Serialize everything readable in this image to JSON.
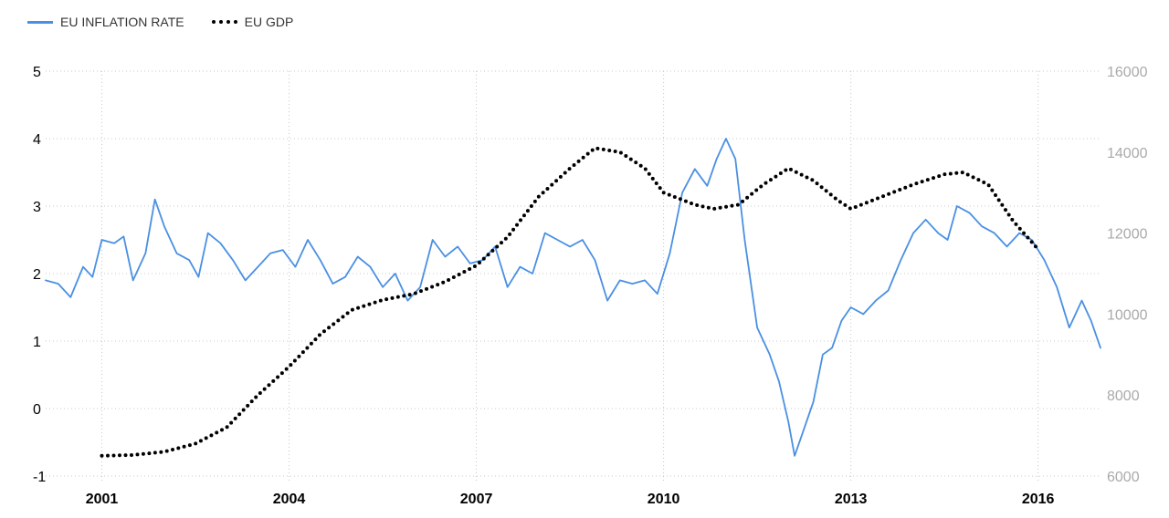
{
  "legend": [
    {
      "label": "EU INFLATION RATE",
      "color": "#4a90e2",
      "style": "solid"
    },
    {
      "label": "EU GDP",
      "color": "#000000",
      "style": "dotted"
    }
  ],
  "chart_data": {
    "type": "line",
    "title": "",
    "xlabel": "",
    "ylabel": "",
    "x_ticks": [
      "2001",
      "2004",
      "2007",
      "2010",
      "2013",
      "2016"
    ],
    "y_left_ticks": [
      "5",
      "4",
      "3",
      "2",
      "1",
      "0",
      "-1"
    ],
    "y_right_ticks": [
      "16000",
      "14000",
      "12000",
      "10000",
      "8000",
      "6000"
    ],
    "xlim": [
      2000.1,
      2017.0
    ],
    "ylim_left": [
      -1,
      5
    ],
    "ylim_right": [
      6000,
      16000
    ],
    "grid": true,
    "legend_position": "top-left",
    "series": [
      {
        "name": "EU INFLATION RATE",
        "axis": "left",
        "color": "#4a90e2",
        "style": "solid",
        "points": [
          [
            2000.1,
            1.9
          ],
          [
            2000.3,
            1.85
          ],
          [
            2000.5,
            1.65
          ],
          [
            2000.7,
            2.1
          ],
          [
            2000.85,
            1.95
          ],
          [
            2001.0,
            2.5
          ],
          [
            2001.2,
            2.45
          ],
          [
            2001.35,
            2.55
          ],
          [
            2001.5,
            1.9
          ],
          [
            2001.7,
            2.3
          ],
          [
            2001.85,
            3.1
          ],
          [
            2002.0,
            2.7
          ],
          [
            2002.2,
            2.3
          ],
          [
            2002.4,
            2.2
          ],
          [
            2002.55,
            1.95
          ],
          [
            2002.7,
            2.6
          ],
          [
            2002.9,
            2.45
          ],
          [
            2003.1,
            2.2
          ],
          [
            2003.3,
            1.9
          ],
          [
            2003.5,
            2.1
          ],
          [
            2003.7,
            2.3
          ],
          [
            2003.9,
            2.35
          ],
          [
            2004.1,
            2.1
          ],
          [
            2004.3,
            2.5
          ],
          [
            2004.5,
            2.2
          ],
          [
            2004.7,
            1.85
          ],
          [
            2004.9,
            1.95
          ],
          [
            2005.1,
            2.25
          ],
          [
            2005.3,
            2.1
          ],
          [
            2005.5,
            1.8
          ],
          [
            2005.7,
            2.0
          ],
          [
            2005.9,
            1.6
          ],
          [
            2006.1,
            1.8
          ],
          [
            2006.3,
            2.5
          ],
          [
            2006.5,
            2.25
          ],
          [
            2006.7,
            2.4
          ],
          [
            2006.9,
            2.15
          ],
          [
            2007.1,
            2.2
          ],
          [
            2007.3,
            2.4
          ],
          [
            2007.5,
            1.8
          ],
          [
            2007.7,
            2.1
          ],
          [
            2007.9,
            2.0
          ],
          [
            2008.1,
            2.6
          ],
          [
            2008.3,
            2.5
          ],
          [
            2008.5,
            2.4
          ],
          [
            2008.7,
            2.5
          ],
          [
            2008.9,
            2.2
          ],
          [
            2009.1,
            1.6
          ],
          [
            2009.3,
            1.9
          ],
          [
            2009.5,
            1.85
          ],
          [
            2009.7,
            1.9
          ],
          [
            2009.9,
            1.7
          ],
          [
            2010.1,
            2.3
          ],
          [
            2010.3,
            3.2
          ],
          [
            2010.5,
            3.55
          ],
          [
            2010.7,
            3.3
          ],
          [
            2010.85,
            3.7
          ],
          [
            2011.0,
            4.0
          ],
          [
            2011.15,
            3.7
          ],
          [
            2011.3,
            2.5
          ],
          [
            2011.5,
            1.2
          ],
          [
            2011.7,
            0.8
          ],
          [
            2011.85,
            0.4
          ],
          [
            2012.0,
            -0.2
          ],
          [
            2012.1,
            -0.7
          ],
          [
            2012.25,
            -0.3
          ],
          [
            2012.4,
            0.1
          ],
          [
            2012.55,
            0.8
          ],
          [
            2012.7,
            0.9
          ],
          [
            2012.85,
            1.3
          ],
          [
            2013.0,
            1.5
          ],
          [
            2013.2,
            1.4
          ],
          [
            2013.4,
            1.6
          ],
          [
            2013.6,
            1.75
          ],
          [
            2013.8,
            2.2
          ],
          [
            2014.0,
            2.6
          ],
          [
            2014.2,
            2.8
          ],
          [
            2014.4,
            2.6
          ],
          [
            2014.55,
            2.5
          ],
          [
            2014.7,
            3.0
          ],
          [
            2014.9,
            2.9
          ],
          [
            2015.1,
            2.7
          ],
          [
            2015.3,
            2.6
          ],
          [
            2015.5,
            2.4
          ],
          [
            2015.7,
            2.6
          ],
          [
            2015.9,
            2.5
          ],
          [
            2016.1,
            2.2
          ],
          [
            2016.3,
            1.8
          ],
          [
            2016.5,
            1.2
          ],
          [
            2016.7,
            1.6
          ],
          [
            2016.85,
            1.3
          ],
          [
            2017.0,
            0.9
          ]
        ]
      },
      {
        "name": "EU GDP",
        "axis": "right",
        "color": "#000000",
        "style": "dotted",
        "points": [
          [
            2001.0,
            6500
          ],
          [
            2001.5,
            6520
          ],
          [
            2002.0,
            6600
          ],
          [
            2002.5,
            6800
          ],
          [
            2003.0,
            7200
          ],
          [
            2003.5,
            8000
          ],
          [
            2004.0,
            8700
          ],
          [
            2004.5,
            9500
          ],
          [
            2005.0,
            10100
          ],
          [
            2005.5,
            10350
          ],
          [
            2006.0,
            10500
          ],
          [
            2006.5,
            10800
          ],
          [
            2007.0,
            11200
          ],
          [
            2007.5,
            11900
          ],
          [
            2008.0,
            12900
          ],
          [
            2008.5,
            13600
          ],
          [
            2008.9,
            14100
          ],
          [
            2009.3,
            14000
          ],
          [
            2009.7,
            13600
          ],
          [
            2010.0,
            13000
          ],
          [
            2010.5,
            12700
          ],
          [
            2010.8,
            12600
          ],
          [
            2011.2,
            12700
          ],
          [
            2011.6,
            13200
          ],
          [
            2012.0,
            13600
          ],
          [
            2012.4,
            13300
          ],
          [
            2012.8,
            12800
          ],
          [
            2013.0,
            12600
          ],
          [
            2013.5,
            12900
          ],
          [
            2014.0,
            13200
          ],
          [
            2014.5,
            13450
          ],
          [
            2014.8,
            13500
          ],
          [
            2015.2,
            13200
          ],
          [
            2015.6,
            12300
          ],
          [
            2016.0,
            11600
          ]
        ]
      }
    ]
  }
}
